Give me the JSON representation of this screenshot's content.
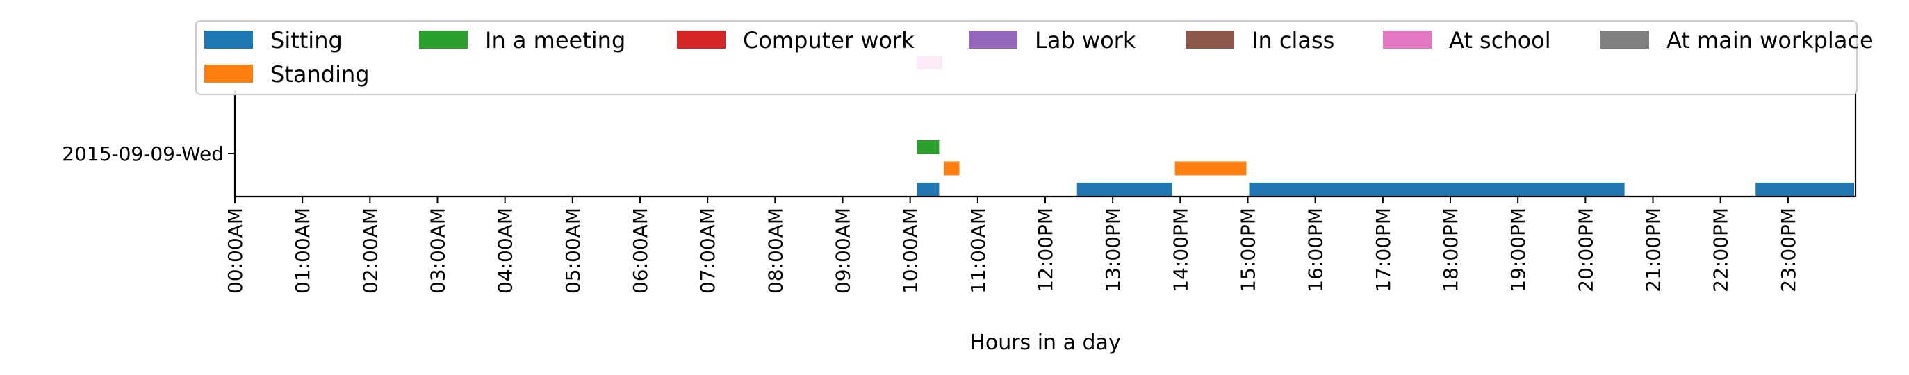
{
  "chart_data": {
    "type": "bar",
    "orientation": "horizontal-timeline",
    "title": "",
    "xlabel": "Hours in a day",
    "ylabel": "",
    "xlim": [
      0,
      24
    ],
    "categories": [
      "2015-09-09-Wed"
    ],
    "x_tick_values": [
      0,
      1,
      2,
      3,
      4,
      5,
      6,
      7,
      8,
      9,
      10,
      11,
      12,
      13,
      14,
      15,
      16,
      17,
      18,
      19,
      20,
      21,
      22,
      23
    ],
    "x_tick_labels": [
      "00:00AM",
      "01:00AM",
      "02:00AM",
      "03:00AM",
      "04:00AM",
      "05:00AM",
      "06:00AM",
      "07:00AM",
      "08:00AM",
      "09:00AM",
      "10:00AM",
      "11:00AM",
      "12:00PM",
      "13:00PM",
      "14:00PM",
      "15:00PM",
      "16:00PM",
      "17:00PM",
      "18:00PM",
      "19:00PM",
      "20:00PM",
      "21:00PM",
      "22:00PM",
      "23:00PM"
    ],
    "grid": false,
    "legend_position": "top",
    "series": [
      {
        "name": "Sitting",
        "color": "#1f77b4",
        "lane": 0,
        "intervals": [
          [
            10.08,
            10.45
          ],
          [
            12.45,
            13.9
          ],
          [
            15.0,
            20.6
          ],
          [
            22.5,
            24.0
          ]
        ]
      },
      {
        "name": "Standing",
        "color": "#ff7f0e",
        "lane": 1,
        "intervals": [
          [
            10.48,
            10.75
          ],
          [
            13.9,
            15.0
          ]
        ]
      },
      {
        "name": "In a meeting",
        "color": "#2ca02c",
        "lane": 2,
        "intervals": [
          [
            10.08,
            10.45
          ]
        ]
      },
      {
        "name": "Computer work",
        "color": "#d62728",
        "lane": 3,
        "intervals": []
      },
      {
        "name": "Lab work",
        "color": "#9467bd",
        "lane": 4,
        "intervals": []
      },
      {
        "name": "In class",
        "color": "#8c564b",
        "lane": 5,
        "intervals": []
      },
      {
        "name": "At school",
        "color": "#e377c2",
        "lane": 6,
        "intervals": [
          [
            10.08,
            10.5
          ]
        ]
      },
      {
        "name": "At main workplace",
        "color": "#7f7f7f",
        "lane": 7,
        "intervals": []
      }
    ]
  }
}
